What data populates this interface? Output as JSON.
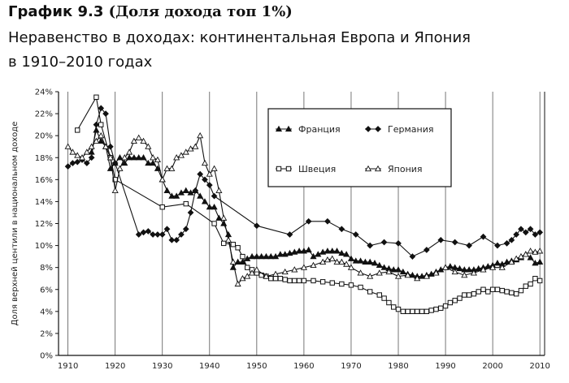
{
  "header": {
    "label": "График 9.3",
    "subtitle": "(Доля дохода топ 1%)",
    "title_line1": "Неравенство в доходах: континентальная Европа и Япония",
    "title_line2": "в 1910–2010 годах"
  },
  "chart_data": {
    "type": "line",
    "ylabel": "Доля верхней центили в национальном доходе",
    "xlim": [
      1908,
      2011
    ],
    "ylim": [
      0,
      24
    ],
    "x_ticks": [
      1910,
      1920,
      1930,
      1940,
      1950,
      1960,
      1970,
      1980,
      1990,
      2000,
      2010
    ],
    "y_ticks": [
      0,
      2,
      4,
      6,
      8,
      10,
      12,
      14,
      16,
      18,
      20,
      22,
      24
    ],
    "y_tick_labels": [
      "0%",
      "2%",
      "4%",
      "6%",
      "8%",
      "10%",
      "12%",
      "14%",
      "16%",
      "18%",
      "20%",
      "22%",
      "24%"
    ],
    "grid": "vertical",
    "legend_position": "top-right",
    "series": [
      {
        "name": "Франция",
        "marker": "triangle-filled",
        "x": [
          1915,
          1916,
          1917,
          1918,
          1919,
          1920,
          1921,
          1922,
          1923,
          1924,
          1925,
          1926,
          1927,
          1928,
          1929,
          1930,
          1931,
          1932,
          1933,
          1934,
          1935,
          1936,
          1937,
          1938,
          1939,
          1940,
          1941,
          1942,
          1943,
          1944,
          1945,
          1946,
          1947,
          1948,
          1949,
          1950,
          1951,
          1952,
          1953,
          1954,
          1955,
          1956,
          1957,
          1958,
          1959,
          1960,
          1961,
          1962,
          1963,
          1964,
          1965,
          1966,
          1967,
          1968,
          1969,
          1970,
          1971,
          1972,
          1973,
          1974,
          1975,
          1976,
          1977,
          1978,
          1979,
          1980,
          1981,
          1982,
          1983,
          1984,
          1985,
          1986,
          1987,
          1988,
          1989,
          1990,
          1991,
          1992,
          1993,
          1994,
          1995,
          1996,
          1997,
          1998,
          1999,
          2000,
          2001,
          2002,
          2003,
          2004,
          2005,
          2006,
          2007,
          2008,
          2009,
          2010
        ],
        "y": [
          18.5,
          20.5,
          19.5,
          19.0,
          17.0,
          17.5,
          18.0,
          17.5,
          18.0,
          18.0,
          18.0,
          18.0,
          17.5,
          17.5,
          17.0,
          16.0,
          15.0,
          14.5,
          14.5,
          14.8,
          15.0,
          14.8,
          15.0,
          14.5,
          14.0,
          13.5,
          13.5,
          12.5,
          12.0,
          11.0,
          8.0,
          8.5,
          8.5,
          8.8,
          9.0,
          9.0,
          9.0,
          9.0,
          9.0,
          9.0,
          9.2,
          9.2,
          9.3,
          9.4,
          9.5,
          9.5,
          9.6,
          9.0,
          9.2,
          9.4,
          9.5,
          9.5,
          9.5,
          9.3,
          9.2,
          8.8,
          8.6,
          8.6,
          8.5,
          8.5,
          8.4,
          8.2,
          8.0,
          7.9,
          7.8,
          7.8,
          7.6,
          7.4,
          7.3,
          7.2,
          7.2,
          7.3,
          7.4,
          7.6,
          7.8,
          8.0,
          8.1,
          8.0,
          7.9,
          7.8,
          7.8,
          7.8,
          7.9,
          8.0,
          8.1,
          8.2,
          8.4,
          8.3,
          8.5,
          8.6,
          8.7,
          8.9,
          9.2,
          8.9,
          8.4,
          8.5
        ]
      },
      {
        "name": "Германия",
        "marker": "diamond-filled",
        "x": [
          1910,
          1911,
          1912,
          1913,
          1914,
          1915,
          1916,
          1917,
          1918,
          1919,
          1920,
          1925,
          1926,
          1927,
          1928,
          1929,
          1930,
          1931,
          1932,
          1933,
          1934,
          1935,
          1936,
          1937,
          1938,
          1939,
          1940,
          1941,
          1950,
          1957,
          1961,
          1965,
          1968,
          1971,
          1974,
          1977,
          1980,
          1983,
          1986,
          1989,
          1992,
          1995,
          1998,
          2001,
          2003,
          2004,
          2005,
          2006,
          2007,
          2008,
          2009,
          2010
        ],
        "y": [
          17.2,
          17.5,
          17.6,
          17.8,
          17.5,
          18.0,
          21.0,
          22.5,
          22.0,
          19.0,
          17.5,
          11.0,
          11.2,
          11.3,
          11.0,
          11.0,
          11.0,
          11.5,
          10.5,
          10.5,
          11.0,
          11.5,
          13.0,
          15.0,
          16.5,
          16.0,
          15.5,
          14.5,
          11.8,
          11.0,
          12.2,
          12.2,
          11.5,
          11.0,
          10.0,
          10.3,
          10.2,
          9.0,
          9.6,
          10.5,
          10.3,
          10.0,
          10.8,
          10.0,
          10.2,
          10.5,
          11.0,
          11.5,
          11.2,
          11.5,
          11.0,
          11.2
        ]
      },
      {
        "name": "Швеция",
        "marker": "square-open",
        "x": [
          1912,
          1916,
          1917,
          1919,
          1920,
          1930,
          1935,
          1941,
          1943,
          1945,
          1946,
          1947,
          1948,
          1949,
          1950,
          1951,
          1952,
          1953,
          1954,
          1955,
          1956,
          1957,
          1958,
          1959,
          1960,
          1962,
          1964,
          1966,
          1968,
          1970,
          1972,
          1974,
          1976,
          1977,
          1978,
          1979,
          1980,
          1981,
          1982,
          1983,
          1984,
          1985,
          1986,
          1987,
          1988,
          1989,
          1990,
          1991,
          1992,
          1993,
          1994,
          1995,
          1996,
          1997,
          1998,
          1999,
          2000,
          2001,
          2002,
          2003,
          2004,
          2005,
          2006,
          2007,
          2008,
          2009,
          2010
        ],
        "y": [
          20.5,
          23.5,
          21.0,
          18.0,
          16.0,
          13.5,
          13.8,
          12.0,
          10.2,
          10.1,
          9.8,
          9.0,
          8.0,
          7.8,
          7.5,
          7.3,
          7.2,
          7.0,
          7.0,
          7.0,
          6.9,
          6.8,
          6.8,
          6.8,
          6.8,
          6.8,
          6.7,
          6.6,
          6.5,
          6.4,
          6.2,
          5.8,
          5.5,
          5.2,
          4.8,
          4.4,
          4.2,
          4.0,
          4.0,
          4.0,
          4.0,
          4.0,
          4.0,
          4.1,
          4.2,
          4.3,
          4.5,
          4.8,
          5.0,
          5.2,
          5.5,
          5.5,
          5.6,
          5.8,
          6.0,
          5.8,
          6.0,
          6.0,
          5.9,
          5.8,
          5.7,
          5.6,
          5.9,
          6.3,
          6.5,
          7.0,
          6.8
        ]
      },
      {
        "name": "Япония",
        "marker": "triangle-open",
        "x": [
          1910,
          1911,
          1912,
          1913,
          1914,
          1915,
          1916,
          1917,
          1918,
          1919,
          1920,
          1921,
          1922,
          1923,
          1924,
          1925,
          1926,
          1927,
          1928,
          1929,
          1930,
          1931,
          1932,
          1933,
          1934,
          1935,
          1936,
          1937,
          1938,
          1939,
          1940,
          1941,
          1942,
          1943,
          1944,
          1945,
          1946,
          1947,
          1948,
          1949,
          1950,
          1952,
          1954,
          1956,
          1958,
          1960,
          1962,
          1964,
          1965,
          1966,
          1967,
          1968,
          1969,
          1970,
          1972,
          1974,
          1976,
          1978,
          1980,
          1982,
          1984,
          1986,
          1988,
          1990,
          1992,
          1994,
          1996,
          1998,
          2000,
          2002,
          2004,
          2005,
          2006,
          2007,
          2008,
          2009,
          2010
        ],
        "y": [
          19.0,
          18.5,
          18.2,
          18.0,
          18.5,
          19.0,
          19.5,
          20.0,
          19.0,
          18.0,
          15.0,
          17.0,
          18.0,
          18.5,
          19.5,
          19.8,
          19.5,
          19.0,
          18.0,
          17.8,
          16.0,
          17.0,
          17.0,
          18.0,
          18.2,
          18.5,
          18.8,
          19.0,
          20.0,
          17.5,
          16.5,
          17.0,
          15.0,
          12.5,
          10.5,
          8.5,
          6.5,
          7.0,
          7.2,
          7.5,
          7.8,
          7.2,
          7.4,
          7.6,
          7.8,
          8.0,
          8.2,
          8.5,
          8.7,
          8.8,
          8.5,
          8.5,
          8.3,
          8.0,
          7.5,
          7.2,
          7.5,
          7.6,
          7.2,
          7.3,
          7.0,
          7.2,
          7.5,
          8.0,
          7.6,
          7.3,
          7.5,
          7.8,
          8.0,
          8.0,
          8.5,
          8.8,
          9.0,
          9.2,
          9.5,
          9.4,
          9.5
        ]
      }
    ]
  }
}
